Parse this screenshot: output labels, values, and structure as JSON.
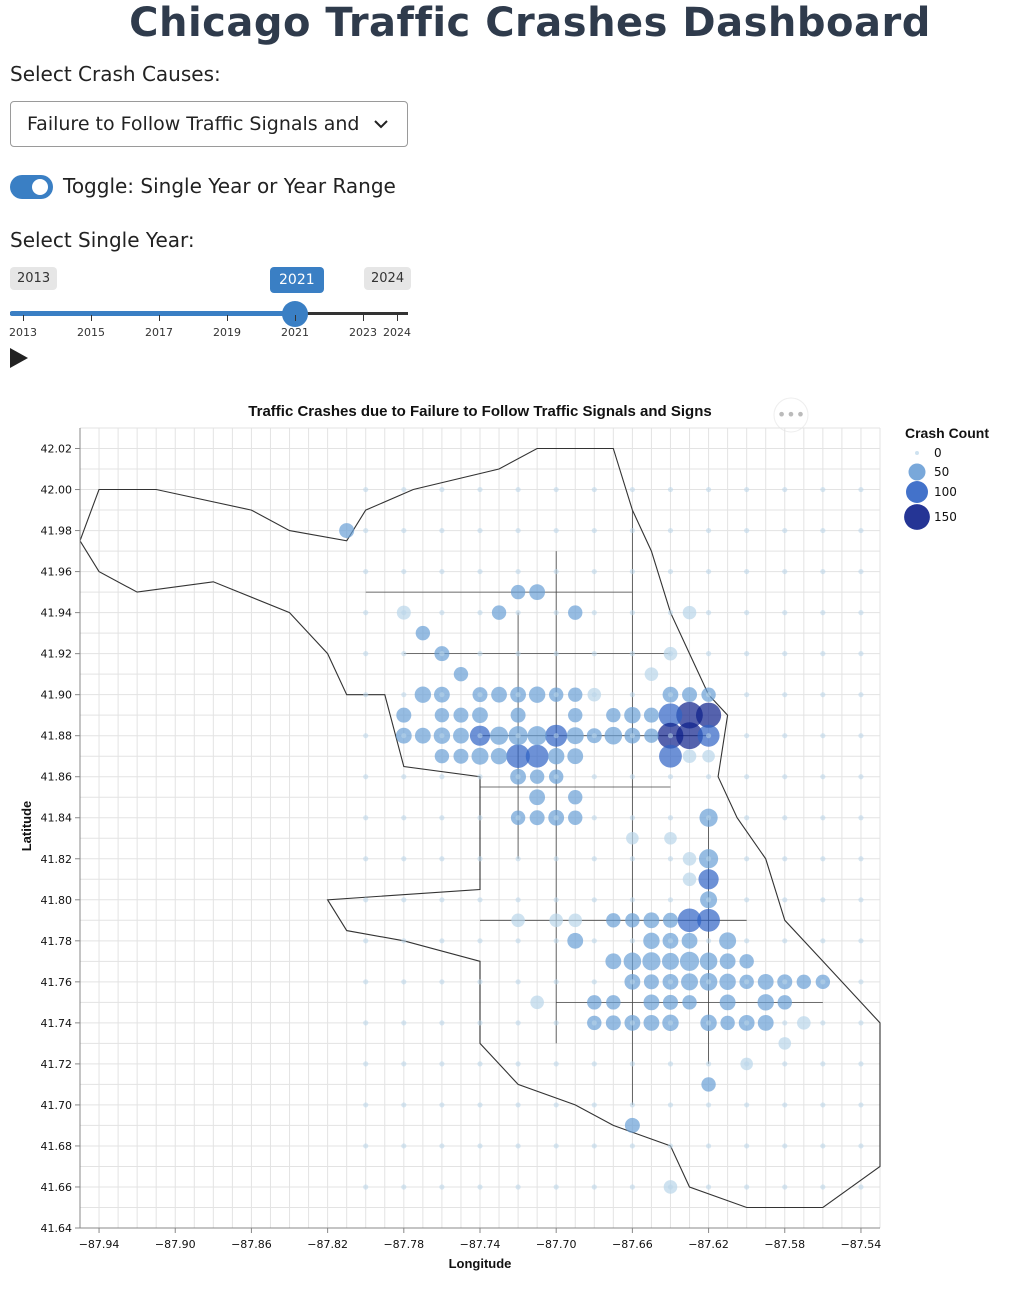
{
  "page": {
    "title": "Chicago Traffic Crashes Dashboard"
  },
  "controls": {
    "cause_label": "Select Crash Causes:",
    "cause_value": "Failure to Follow Traffic Signals and Signs",
    "toggle_on": true,
    "toggle_label": "Toggle: Single Year or Year Range",
    "year_label": "Select Single Year:",
    "year_min_label": "2013",
    "year_max_label": "2024",
    "year_selected_label": "2021",
    "year_min": 2013,
    "year_max": 2024,
    "year_selected": 2021,
    "tick_years": [
      "2013",
      "2015",
      "2017",
      "2019",
      "2021",
      "2023",
      "2024"
    ],
    "accent_color": "#3a7fc4",
    "play_icon": "play-icon"
  },
  "chart_data": {
    "type": "scatter",
    "title": "Traffic Crashes due to Failure to Follow Traffic Signals and Signs",
    "xlabel": "Longitude",
    "ylabel": "Latitude",
    "xlim": [
      -87.95,
      -87.53
    ],
    "ylim": [
      41.64,
      42.03
    ],
    "x_ticks": [
      "-87.94",
      "-87.90",
      "-87.86",
      "-87.82",
      "-87.78",
      "-87.74",
      "-87.70",
      "-87.66",
      "-87.62",
      "-87.58",
      "-87.54"
    ],
    "y_ticks": [
      "41.64",
      "41.66",
      "41.68",
      "41.70",
      "41.72",
      "41.74",
      "41.76",
      "41.78",
      "41.80",
      "41.82",
      "41.84",
      "41.86",
      "41.88",
      "41.90",
      "41.92",
      "41.94",
      "41.96",
      "41.98",
      "42.00",
      "42.02"
    ],
    "grid": true,
    "legend": {
      "title": "Crash Count",
      "position": "top-right",
      "entries": [
        {
          "label": "0",
          "value": 0
        },
        {
          "label": "50",
          "value": 50
        },
        {
          "label": "100",
          "value": 100
        },
        {
          "label": "150",
          "value": 150
        }
      ]
    },
    "color_scale": [
      "#b9d6ea",
      "#6a9fd6",
      "#2f63c4",
      "#0d1f8a"
    ],
    "points": [
      [
        -87.63,
        41.89,
        160
      ],
      [
        -87.62,
        41.89,
        140
      ],
      [
        -87.64,
        41.89,
        120
      ],
      [
        -87.63,
        41.88,
        165
      ],
      [
        -87.64,
        41.88,
        150
      ],
      [
        -87.62,
        41.88,
        100
      ],
      [
        -87.64,
        41.87,
        110
      ],
      [
        -87.63,
        41.87,
        25
      ],
      [
        -87.62,
        41.87,
        20
      ],
      [
        -87.63,
        41.79,
        120
      ],
      [
        -87.62,
        41.79,
        110
      ],
      [
        -87.72,
        41.87,
        120
      ],
      [
        -87.71,
        41.87,
        110
      ],
      [
        -87.7,
        41.88,
        100
      ],
      [
        -87.74,
        41.88,
        80
      ],
      [
        -87.72,
        41.88,
        70
      ],
      [
        -87.71,
        41.88,
        70
      ],
      [
        -87.73,
        41.88,
        60
      ],
      [
        -87.69,
        41.88,
        50
      ],
      [
        -87.67,
        41.88,
        55
      ],
      [
        -87.66,
        41.88,
        40
      ],
      [
        -87.65,
        41.88,
        30
      ],
      [
        -87.68,
        41.88,
        35
      ],
      [
        -87.74,
        41.87,
        50
      ],
      [
        -87.73,
        41.87,
        45
      ],
      [
        -87.7,
        41.87,
        45
      ],
      [
        -87.69,
        41.87,
        40
      ],
      [
        -87.75,
        41.87,
        35
      ],
      [
        -87.76,
        41.87,
        30
      ],
      [
        -87.77,
        41.88,
        40
      ],
      [
        -87.76,
        41.88,
        45
      ],
      [
        -87.75,
        41.88,
        40
      ],
      [
        -87.78,
        41.88,
        40
      ],
      [
        -87.76,
        41.89,
        30
      ],
      [
        -87.75,
        41.89,
        35
      ],
      [
        -87.74,
        41.89,
        40
      ],
      [
        -87.72,
        41.89,
        35
      ],
      [
        -87.66,
        41.89,
        45
      ],
      [
        -87.65,
        41.89,
        35
      ],
      [
        -87.67,
        41.89,
        30
      ],
      [
        -87.78,
        41.89,
        35
      ],
      [
        -87.77,
        41.9,
        45
      ],
      [
        -87.76,
        41.9,
        40
      ],
      [
        -87.74,
        41.9,
        35
      ],
      [
        -87.73,
        41.9,
        40
      ],
      [
        -87.71,
        41.9,
        45
      ],
      [
        -87.72,
        41.9,
        40
      ],
      [
        -87.7,
        41.9,
        30
      ],
      [
        -87.69,
        41.9,
        30
      ],
      [
        -87.68,
        41.9,
        25
      ],
      [
        -87.64,
        41.9,
        40
      ],
      [
        -87.63,
        41.9,
        35
      ],
      [
        -87.62,
        41.9,
        30
      ],
      [
        -87.72,
        41.86,
        40
      ],
      [
        -87.71,
        41.86,
        30
      ],
      [
        -87.7,
        41.86,
        30
      ],
      [
        -87.71,
        41.85,
        40
      ],
      [
        -87.72,
        41.84,
        30
      ],
      [
        -87.71,
        41.84,
        35
      ],
      [
        -87.7,
        41.84,
        40
      ],
      [
        -87.69,
        41.84,
        30
      ],
      [
        -87.62,
        41.84,
        60
      ],
      [
        -87.62,
        41.82,
        70
      ],
      [
        -87.62,
        41.81,
        80
      ],
      [
        -87.62,
        41.8,
        50
      ],
      [
        -87.61,
        41.78,
        50
      ],
      [
        -87.65,
        41.79,
        40
      ],
      [
        -87.64,
        41.79,
        35
      ],
      [
        -87.66,
        41.79,
        30
      ],
      [
        -87.67,
        41.79,
        30
      ],
      [
        -87.69,
        41.78,
        40
      ],
      [
        -87.65,
        41.78,
        45
      ],
      [
        -87.64,
        41.78,
        40
      ],
      [
        -87.63,
        41.78,
        40
      ],
      [
        -87.66,
        41.77,
        55
      ],
      [
        -87.65,
        41.77,
        60
      ],
      [
        -87.64,
        41.77,
        50
      ],
      [
        -87.63,
        41.77,
        70
      ],
      [
        -87.62,
        41.77,
        55
      ],
      [
        -87.61,
        41.77,
        40
      ],
      [
        -87.6,
        41.77,
        30
      ],
      [
        -87.67,
        41.77,
        40
      ],
      [
        -87.66,
        41.76,
        40
      ],
      [
        -87.65,
        41.76,
        35
      ],
      [
        -87.64,
        41.76,
        40
      ],
      [
        -87.63,
        41.76,
        50
      ],
      [
        -87.62,
        41.76,
        55
      ],
      [
        -87.61,
        41.76,
        45
      ],
      [
        -87.6,
        41.76,
        30
      ],
      [
        -87.59,
        41.76,
        40
      ],
      [
        -87.58,
        41.76,
        35
      ],
      [
        -87.57,
        41.76,
        30
      ],
      [
        -87.56,
        41.76,
        30
      ],
      [
        -87.65,
        41.75,
        40
      ],
      [
        -87.64,
        41.75,
        35
      ],
      [
        -87.63,
        41.75,
        30
      ],
      [
        -87.61,
        41.75,
        40
      ],
      [
        -87.59,
        41.75,
        45
      ],
      [
        -87.58,
        41.75,
        30
      ],
      [
        -87.66,
        41.74,
        40
      ],
      [
        -87.65,
        41.74,
        40
      ],
      [
        -87.64,
        41.74,
        45
      ],
      [
        -87.62,
        41.74,
        45
      ],
      [
        -87.6,
        41.74,
        40
      ],
      [
        -87.59,
        41.74,
        40
      ],
      [
        -87.67,
        41.74,
        35
      ],
      [
        -87.68,
        41.74,
        30
      ],
      [
        -87.61,
        41.74,
        30
      ],
      [
        -87.62,
        41.71,
        30
      ],
      [
        -87.66,
        41.69,
        35
      ],
      [
        -87.64,
        41.66,
        25
      ],
      [
        -87.75,
        41.91,
        30
      ],
      [
        -87.76,
        41.92,
        35
      ],
      [
        -87.72,
        41.95,
        30
      ],
      [
        -87.71,
        41.95,
        40
      ],
      [
        -87.81,
        41.98,
        35
      ],
      [
        -87.73,
        41.94,
        30
      ],
      [
        -87.77,
        41.93,
        30
      ],
      [
        -87.78,
        41.94,
        28
      ],
      [
        -87.69,
        41.94,
        30
      ],
      [
        -87.63,
        41.94,
        25
      ],
      [
        -87.64,
        41.92,
        25
      ],
      [
        -87.65,
        41.91,
        25
      ],
      [
        -87.69,
        41.89,
        30
      ],
      [
        -87.69,
        41.85,
        30
      ],
      [
        -87.66,
        41.83,
        20
      ],
      [
        -87.64,
        41.83,
        20
      ],
      [
        -87.63,
        41.82,
        25
      ],
      [
        -87.63,
        41.81,
        25
      ],
      [
        -87.69,
        41.79,
        25
      ],
      [
        -87.7,
        41.79,
        25
      ],
      [
        -87.72,
        41.79,
        25
      ],
      [
        -87.71,
        41.75,
        25
      ],
      [
        -87.68,
        41.75,
        30
      ],
      [
        -87.67,
        41.75,
        30
      ],
      [
        -87.57,
        41.74,
        25
      ],
      [
        -87.58,
        41.73,
        20
      ],
      [
        -87.6,
        41.72,
        20
      ]
    ]
  }
}
